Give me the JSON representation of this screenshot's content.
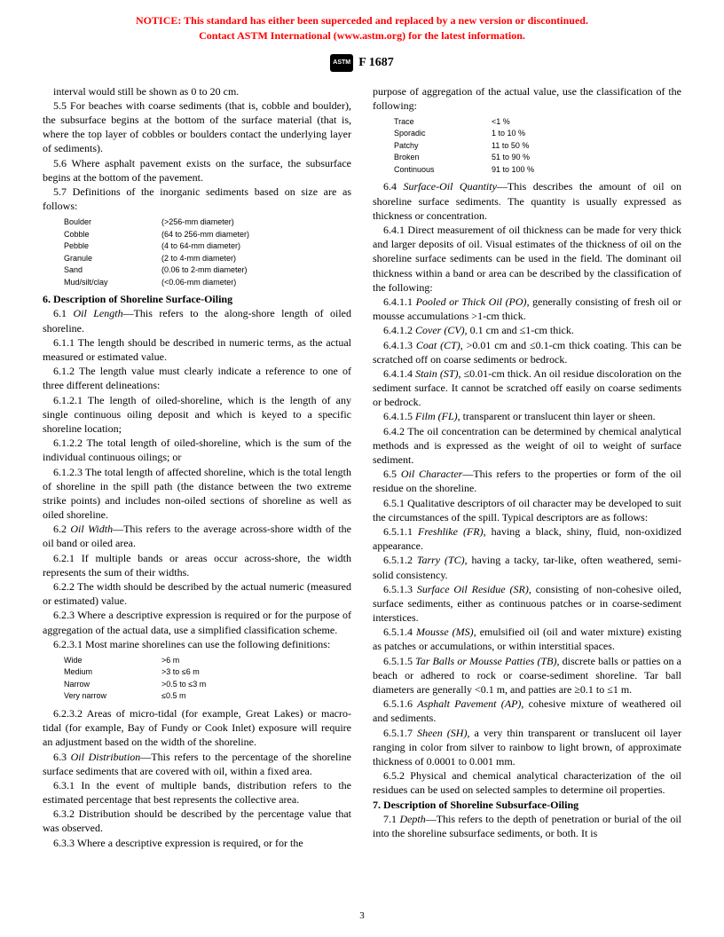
{
  "notice": {
    "line1": "NOTICE: This standard has either been superceded and replaced by a new version or discontinued.",
    "line2": "Contact ASTM International (www.astm.org) for the latest information."
  },
  "header": {
    "logo_text": "ASTM",
    "doc_id": "F 1687"
  },
  "paras": {
    "p0": "interval would still be shown as 0 to 20 cm.",
    "p1": "5.5 For beaches with coarse sediments (that is, cobble and boulder), the subsurface begins at the bottom of the surface material (that is, where the top layer of cobbles or boulders contact the underlying layer of sediments).",
    "p2": "5.6 Where asphalt pavement exists on the surface, the subsurface begins at the bottom of the pavement.",
    "p3": "5.7 Definitions of the inorganic sediments based on size are as follows:",
    "s6_title": "6. Description of Shoreline Surface-Oiling",
    "p6_1a": "6.1 ",
    "p6_1b": "Oil Length",
    "p6_1c": "—This refers to the along-shore length of oiled shoreline.",
    "p6_1_1": "6.1.1 The length should be described in numeric terms, as the actual measured or estimated value.",
    "p6_1_2": "6.1.2 The length value must clearly indicate a reference to one of three different delineations:",
    "p6_1_2_1": "6.1.2.1 The length of oiled-shoreline, which is the length of any single continuous oiling deposit and which is keyed to a specific shoreline location;",
    "p6_1_2_2": "6.1.2.2 The total length of oiled-shoreline, which is the sum of the individual continuous oilings; or",
    "p6_1_2_3": "6.1.2.3 The total length of affected shoreline, which is the total length of shoreline in the spill path (the distance between the two extreme strike points) and includes non-oiled sections of shoreline as well as oiled shoreline.",
    "p6_2a": "6.2 ",
    "p6_2b": "Oil Width",
    "p6_2c": "—This refers to the average across-shore width of the oil band or oiled area.",
    "p6_2_1": "6.2.1 If multiple bands or areas occur across-shore, the width represents the sum of their widths.",
    "p6_2_2": "6.2.2 The width should be described by the actual numeric (measured or estimated) value.",
    "p6_2_3": "6.2.3 Where a descriptive expression is required or for the purpose of aggregation of the actual data, use a simplified classification scheme.",
    "p6_2_3_1": "6.2.3.1 Most marine shorelines can use the following definitions:",
    "p6_2_3_2": "6.2.3.2 Areas of micro-tidal (for example, Great Lakes) or macro-tidal (for example, Bay of Fundy or Cook Inlet) exposure will require an adjustment based on the width of the shoreline.",
    "p6_3a": "6.3 ",
    "p6_3b": "Oil Distribution",
    "p6_3c": "—This refers to the percentage of the shoreline surface sediments that are covered with oil, within a fixed area.",
    "p6_3_1": "6.3.1 In the event of multiple bands, distribution refers to the estimated percentage that best represents the collective area.",
    "p6_3_2": "6.3.2 Distribution should be described by the percentage value that was observed.",
    "p6_3_3": "6.3.3 Where a descriptive expression is required, or for the",
    "rc1": "purpose of aggregation of the actual value, use the classification of the following:",
    "p6_4a": "6.4 ",
    "p6_4b": "Surface-Oil Quantity",
    "p6_4c": "—This describes the amount of oil on shoreline surface sediments. The quantity is usually expressed as thickness or concentration.",
    "p6_4_1": "6.4.1 Direct measurement of oil thickness can be made for very thick and larger deposits of oil. Visual estimates of the thickness of oil on the shoreline surface sediments can be used in the field. The dominant oil thickness within a band or area can be described by the classification of the following:",
    "p6_4_1_1a": "6.4.1.1 ",
    "p6_4_1_1b": "Pooled or Thick Oil (PO)",
    "p6_4_1_1c": ", generally consisting of fresh oil or mousse accumulations >1-cm thick.",
    "p6_4_1_2a": "6.4.1.2 ",
    "p6_4_1_2b": "Cover (CV)",
    "p6_4_1_2c": ", 0.1 cm and ≤1-cm thick.",
    "p6_4_1_3a": "6.4.1.3 ",
    "p6_4_1_3b": "Coat (CT)",
    "p6_4_1_3c": ", >0.01 cm and ≤0.1-cm thick coating. This can be scratched off on coarse sediments or bedrock.",
    "p6_4_1_4a": "6.4.1.4 ",
    "p6_4_1_4b": "Stain (ST)",
    "p6_4_1_4c": ", ≤0.01-cm thick. An oil residue discoloration on the sediment surface. It cannot be scratched off easily on coarse sediments or bedrock.",
    "p6_4_1_5a": "6.4.1.5 ",
    "p6_4_1_5b": "Film (FL)",
    "p6_4_1_5c": ", transparent or translucent thin layer or sheen.",
    "p6_4_2": "6.4.2 The oil concentration can be determined by chemical analytical methods and is expressed as the weight of oil to weight of surface sediment.",
    "p6_5a": "6.5 ",
    "p6_5b": "Oil Character",
    "p6_5c": "—This refers to the properties or form of the oil residue on the shoreline.",
    "p6_5_1": "6.5.1 Qualitative descriptors of oil character may be developed to suit the circumstances of the spill. Typical descriptors are as follows:",
    "p6_5_1_1a": "6.5.1.1 ",
    "p6_5_1_1b": "Freshlike (FR)",
    "p6_5_1_1c": ", having a black, shiny, fluid, non-oxidized appearance.",
    "p6_5_1_2a": "6.5.1.2 ",
    "p6_5_1_2b": "Tarry (TC)",
    "p6_5_1_2c": ", having a tacky, tar-like, often weathered, semi-solid consistency.",
    "p6_5_1_3a": "6.5.1.3 ",
    "p6_5_1_3b": "Surface Oil Residue (SR)",
    "p6_5_1_3c": ", consisting of non-cohesive oiled, surface sediments, either as continuous patches or in coarse-sediment interstices.",
    "p6_5_1_4a": "6.5.1.4 ",
    "p6_5_1_4b": "Mousse (MS)",
    "p6_5_1_4c": ", emulsified oil (oil and water mixture) existing as patches or accumulations, or within interstitial spaces.",
    "p6_5_1_5a": "6.5.1.5 ",
    "p6_5_1_5b": "Tar Balls or Mousse Patties (TB)",
    "p6_5_1_5c": ", discrete balls or patties on a beach or adhered to rock or coarse-sediment shoreline. Tar ball diameters are generally <0.1 m, and patties are ≥0.1 to ≤1 m.",
    "p6_5_1_6a": "6.5.1.6 ",
    "p6_5_1_6b": "Asphalt Pavement (AP)",
    "p6_5_1_6c": ", cohesive mixture of weathered oil and sediments.",
    "p6_5_1_7a": "6.5.1.7 ",
    "p6_5_1_7b": "Sheen (SH)",
    "p6_5_1_7c": ", a very thin transparent or translucent oil layer ranging in color from silver to rainbow to light brown, of approximate thickness of 0.0001 to 0.001 mm.",
    "p6_5_2": "6.5.2 Physical and chemical analytical characterization of the oil residues can be used on selected samples to determine oil properties.",
    "s7_title": "7. Description of Shoreline Subsurface-Oiling",
    "p7_1a": "7.1 ",
    "p7_1b": "Depth",
    "p7_1c": "—This refers to the depth of penetration or burial of the oil into the shoreline subsurface sediments, or both. It is"
  },
  "table1": {
    "r1c1": "Boulder",
    "r1c2": "(>256-mm diameter)",
    "r2c1": "Cobble",
    "r2c2": "(64 to 256-mm diameter)",
    "r3c1": "Pebble",
    "r3c2": "(4 to 64-mm diameter)",
    "r4c1": "Granule",
    "r4c2": "(2 to 4-mm diameter)",
    "r5c1": "Sand",
    "r5c2": "(0.06 to 2-mm diameter)",
    "r6c1": "Mud/silt/clay",
    "r6c2": "(<0.06-mm diameter)"
  },
  "table2": {
    "r1c1": "Wide",
    "r1c2": ">6 m",
    "r2c1": "Medium",
    "r2c2": ">3 to ≤6 m",
    "r3c1": "Narrow",
    "r3c2": ">0.5 to ≤3 m",
    "r4c1": "Very narrow",
    "r4c2": "≤0.5 m"
  },
  "table3": {
    "r1c1": "Trace",
    "r1c2": "<1 %",
    "r2c1": "Sporadic",
    "r2c2": "1 to 10 %",
    "r3c1": "Patchy",
    "r3c2": "11 to 50 %",
    "r4c1": "Broken",
    "r4c2": "51 to 90 %",
    "r5c1": "Continuous",
    "r5c2": "91 to 100 %"
  },
  "pagenum": "3"
}
